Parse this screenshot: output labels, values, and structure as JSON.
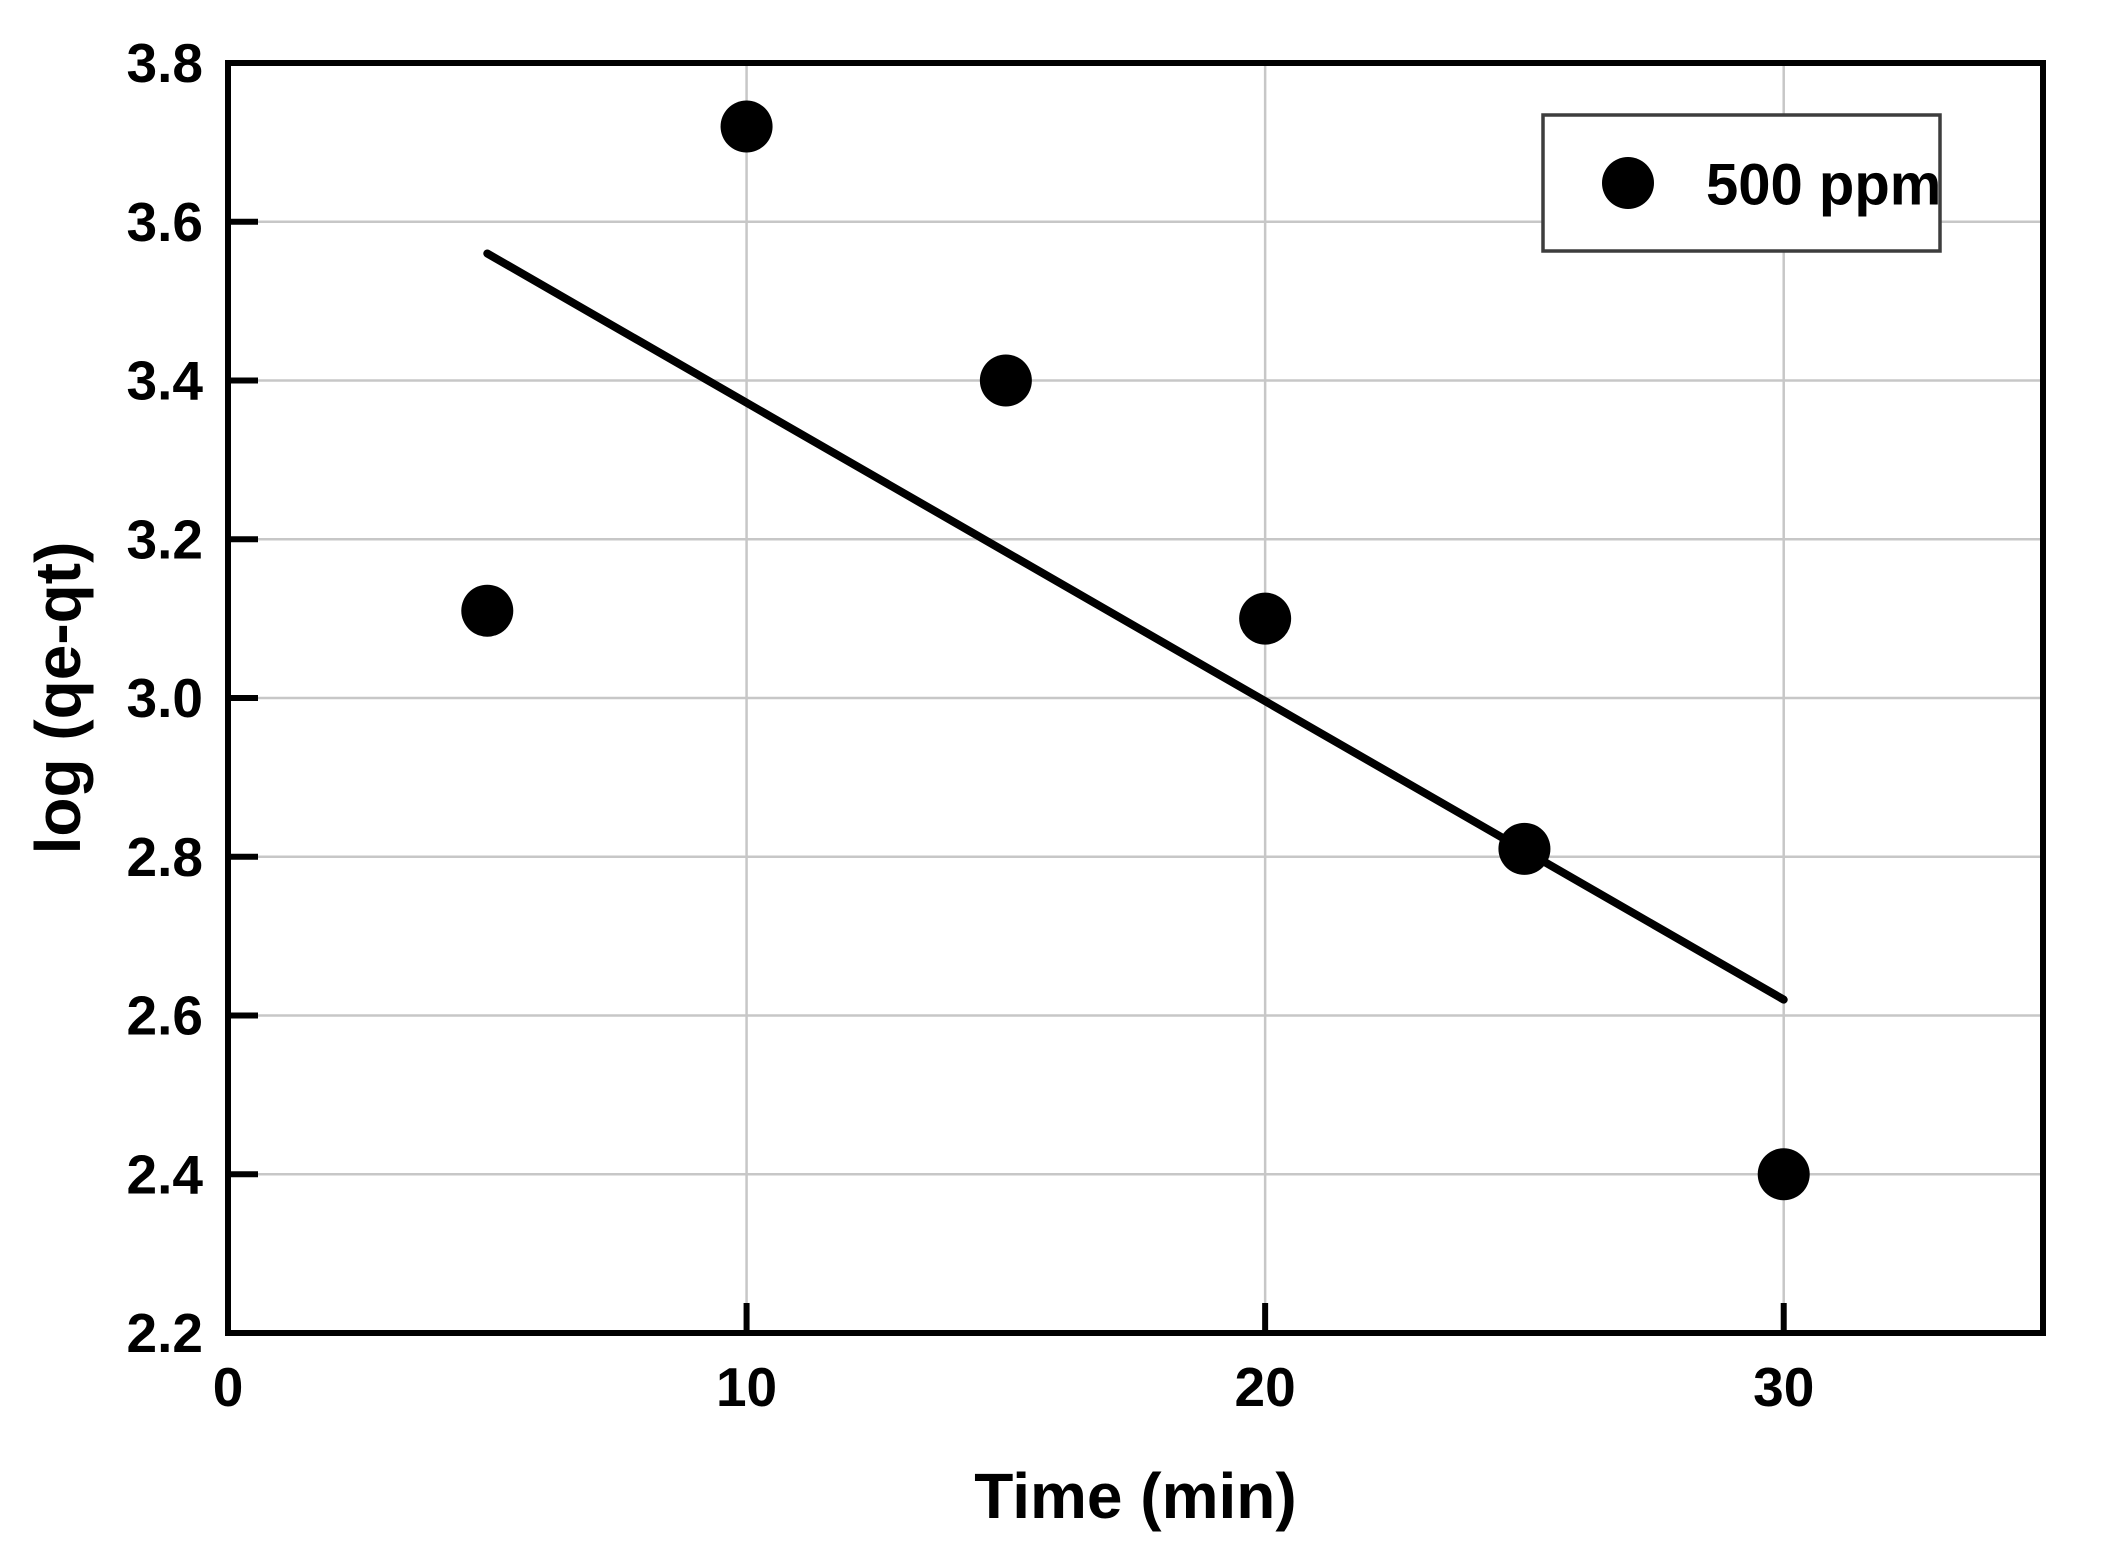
{
  "figure": {
    "background": "#ffffff"
  },
  "chart_data": {
    "type": "scatter",
    "title": "",
    "xlabel": "Time (min)",
    "ylabel": "log (qe-qt)",
    "xlim": [
      0,
      35
    ],
    "ylim": [
      2.2,
      3.8
    ],
    "xticks": [
      "0",
      "10",
      "20",
      "30"
    ],
    "yticks": [
      "2.2",
      "2.4",
      "2.6",
      "2.8",
      "3.0",
      "3.2",
      "3.4",
      "3.6",
      "3.8"
    ],
    "x_gridlines": [
      10,
      20,
      30
    ],
    "y_gridlines": [
      2.4,
      2.6,
      2.8,
      3.0,
      3.2,
      3.4,
      3.6
    ],
    "grid": true,
    "grid_color": "#c7c7c7",
    "axis_color": "#000000",
    "text_color": "#000000",
    "series": [
      {
        "name": "500 ppm",
        "marker": "circle",
        "color": "#000000",
        "points": [
          {
            "x": 5,
            "y": 3.11
          },
          {
            "x": 10,
            "y": 3.72
          },
          {
            "x": 15,
            "y": 3.4
          },
          {
            "x": 20,
            "y": 3.1
          },
          {
            "x": 25,
            "y": 2.81
          },
          {
            "x": 30,
            "y": 2.4
          }
        ]
      }
    ],
    "trendline": {
      "series": "500 ppm",
      "x1": 5,
      "y1": 3.56,
      "x2": 30,
      "y2": 2.62,
      "color": "#000000"
    },
    "legend": {
      "position": "top-right",
      "border_color": "#3d3d3d",
      "fill": "#ffffff",
      "entries": [
        "500 ppm"
      ]
    }
  }
}
